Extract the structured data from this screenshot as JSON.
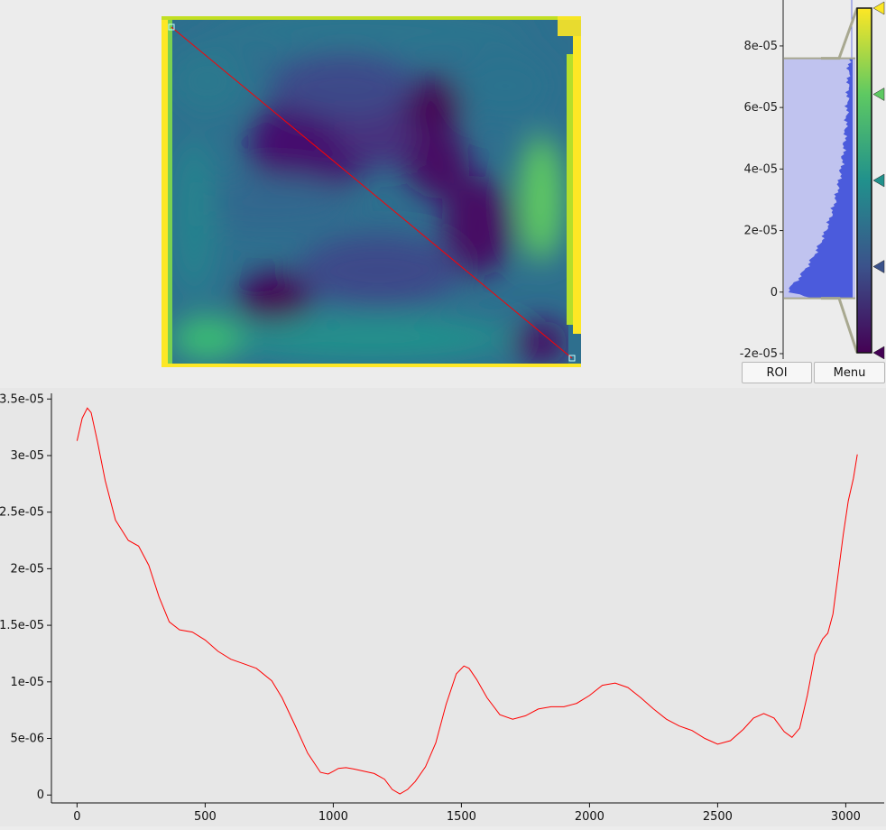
{
  "image_view": {
    "colormap": "viridis",
    "roi_line_color": "#ff0000",
    "handle_color": "#c8ffff"
  },
  "histogram": {
    "axis_ticks": [
      "8e-05",
      "6e-05",
      "4e-05",
      "2e-05",
      "0",
      "-2e-05"
    ],
    "tick_values": [
      8e-05,
      6e-05,
      4e-05,
      2e-05,
      0,
      -2e-05
    ],
    "range_max": 9.2e-05,
    "range_min": -2e-05,
    "level_high": 7.6e-05,
    "level_low": -2e-06,
    "fill_color": "#4b5bdc",
    "region_color": "#b8bcf0",
    "gradient_stops": [
      {
        "color": "#440154",
        "position": 0.0
      },
      {
        "color": "#3b528b",
        "position": 0.25
      },
      {
        "color": "#21918c",
        "position": 0.5
      },
      {
        "color": "#5ec962",
        "position": 0.75
      },
      {
        "color": "#fde725",
        "position": 1.0
      }
    ],
    "roi_button": "ROI",
    "menu_button": "Menu"
  },
  "chart_data": {
    "type": "line",
    "line_color": "#ff0000",
    "xlim": [
      -100,
      3150
    ],
    "ylim": [
      -7e-07,
      3.55e-05
    ],
    "x_ticks": [
      0,
      500,
      1000,
      1500,
      2000,
      2500,
      3000
    ],
    "x_tick_labels": [
      "0",
      "500",
      "1000",
      "1500",
      "2000",
      "2500",
      "3000"
    ],
    "y_ticks": [
      0,
      5e-06,
      1e-05,
      1.5e-05,
      2e-05,
      2.5e-05,
      3e-05,
      3.5e-05
    ],
    "y_tick_labels": [
      "0",
      "5e-06",
      "1e-05",
      "1.5e-05",
      "2e-05",
      "2.5e-05",
      "3e-05",
      "3.5e-05"
    ],
    "series": [
      {
        "x": [
          0,
          20,
          40,
          55,
          80,
          110,
          150,
          200,
          240,
          280,
          320,
          360,
          400,
          450,
          500,
          550,
          600,
          650,
          700,
          760,
          800,
          850,
          900,
          950,
          980,
          1000,
          1020,
          1050,
          1080,
          1120,
          1160,
          1200,
          1230,
          1260,
          1290,
          1320,
          1360,
          1400,
          1440,
          1480,
          1510,
          1530,
          1560,
          1600,
          1650,
          1700,
          1750,
          1800,
          1850,
          1900,
          1950,
          2000,
          2050,
          2100,
          2150,
          2200,
          2250,
          2300,
          2350,
          2400,
          2450,
          2500,
          2550,
          2600,
          2640,
          2680,
          2720,
          2760,
          2790,
          2820,
          2850,
          2880,
          2910,
          2930,
          2950,
          2970,
          2990,
          3010,
          3030,
          3045
        ],
        "y": [
          3.13e-05,
          3.33e-05,
          3.42e-05,
          3.38e-05,
          3.12e-05,
          2.78e-05,
          2.43e-05,
          2.25e-05,
          2.2e-05,
          2.03e-05,
          1.75e-05,
          1.53e-05,
          1.46e-05,
          1.44e-05,
          1.37e-05,
          1.27e-05,
          1.2e-05,
          1.16e-05,
          1.12e-05,
          1.01e-05,
          8.6e-06,
          6.2e-06,
          3.7e-06,
          2e-06,
          1.85e-06,
          2.1e-06,
          2.35e-06,
          2.42e-06,
          2.3e-06,
          2.1e-06,
          1.9e-06,
          1.4e-06,
          5e-07,
          1e-07,
          5e-07,
          1.2e-06,
          2.5e-06,
          4.6e-06,
          8e-06,
          1.07e-05,
          1.14e-05,
          1.12e-05,
          1.02e-05,
          8.6e-06,
          7.1e-06,
          6.7e-06,
          7e-06,
          7.6e-06,
          7.8e-06,
          7.8e-06,
          8.1e-06,
          8.8e-06,
          9.7e-06,
          9.9e-06,
          9.5e-06,
          8.6e-06,
          7.6e-06,
          6.7e-06,
          6.1e-06,
          5.7e-06,
          5e-06,
          4.5e-06,
          4.8e-06,
          5.8e-06,
          6.8e-06,
          7.2e-06,
          6.8e-06,
          5.6e-06,
          5.1e-06,
          5.9e-06,
          8.8e-06,
          1.24e-05,
          1.38e-05,
          1.43e-05,
          1.6e-05,
          1.95e-05,
          2.3e-05,
          2.6e-05,
          2.8e-05,
          3.01e-05
        ]
      }
    ]
  }
}
